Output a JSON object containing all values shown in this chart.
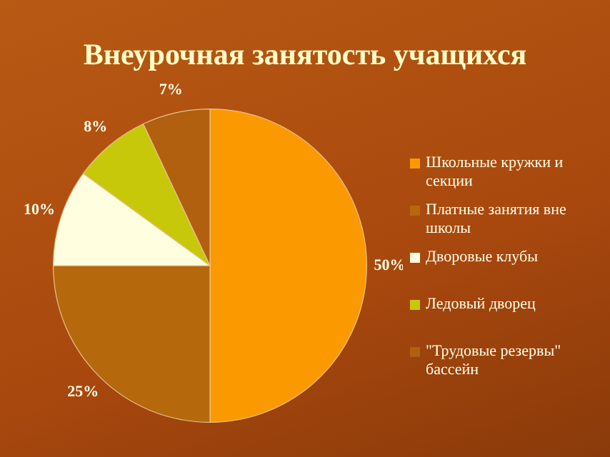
{
  "chart_data": {
    "type": "pie",
    "title": "Внеурочная занятость учащихся",
    "categories": [
      "Школьные кружки и секции",
      "Платные занятия вне школы",
      "Дворовые клубы",
      "Ледовый дворец",
      "\"Трудовые резервы\" бассейн"
    ],
    "values": [
      50,
      25,
      10,
      8,
      7
    ],
    "value_labels": [
      "50%",
      "25%",
      "10%",
      "8%",
      "7%"
    ],
    "colors": [
      "#fb9a00",
      "#b5690c",
      "#ffffe0",
      "#c8c80a",
      "#b0600e"
    ],
    "legend": "right"
  }
}
